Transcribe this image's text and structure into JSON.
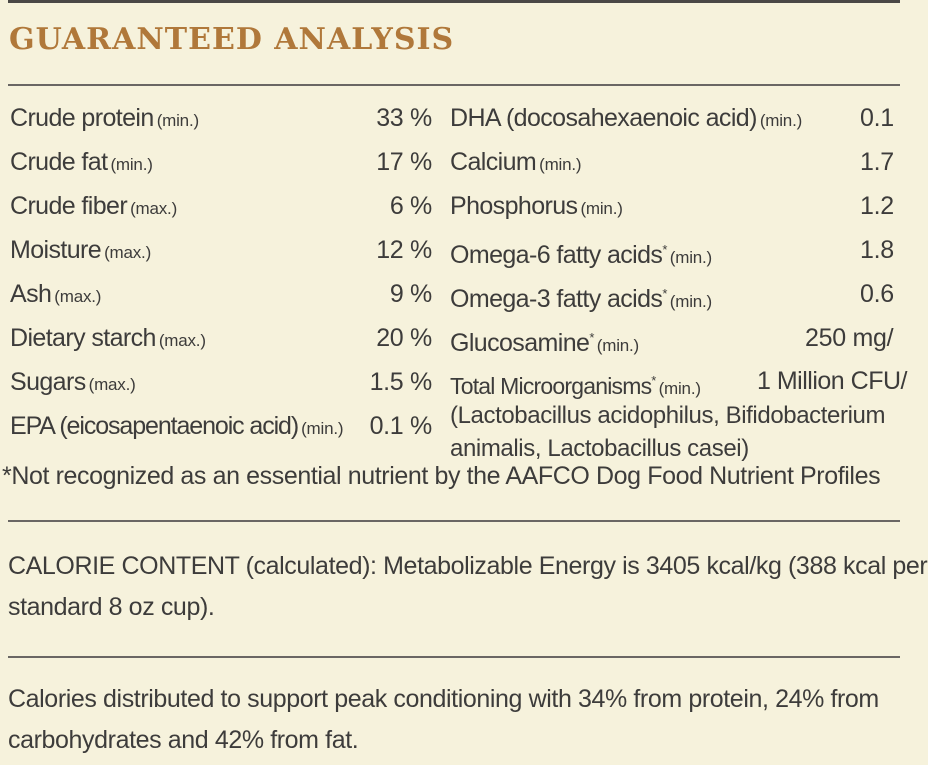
{
  "title": "GUARANTEED ANALYSIS",
  "left_items": [
    {
      "name": "Crude protein",
      "qualifier": "(min.)",
      "value": "33 %"
    },
    {
      "name": "Crude fat",
      "qualifier": "(min.)",
      "value": "17 %"
    },
    {
      "name": "Crude fiber",
      "qualifier": "(max.)",
      "value": "6 %"
    },
    {
      "name": "Moisture",
      "qualifier": "(max.)",
      "value": "12 %"
    },
    {
      "name": "Ash",
      "qualifier": "(max.)",
      "value": "9 %"
    },
    {
      "name": "Dietary starch",
      "qualifier": "(max.)",
      "value": "20 %"
    },
    {
      "name": "Sugars",
      "qualifier": "(max.)",
      "value": "1.5 %"
    },
    {
      "name": "EPA (eicosapentaenoic acid)",
      "qualifier": "(min.)",
      "value": "0.1 %"
    }
  ],
  "right_items": [
    {
      "name": "DHA (docosahexaenoic acid)",
      "qualifier": "(min.)",
      "value": "0.1"
    },
    {
      "name": "Calcium",
      "qualifier": "(min.)",
      "value": "1.7"
    },
    {
      "name": "Phosphorus",
      "qualifier": "(min.)",
      "value": "1.2"
    },
    {
      "name": "Omega-6 fatty acids",
      "mark": "*",
      "qualifier": "(min.)",
      "value": "1.8"
    },
    {
      "name": "Omega-3 fatty acids",
      "mark": "*",
      "qualifier": "(min.)",
      "value": "0.6"
    },
    {
      "name": "Glucosamine",
      "mark": "*",
      "qualifier": "(min.)",
      "value": "250 mg/"
    }
  ],
  "microorganisms": {
    "name": "Total Microorganisms",
    "mark": "*",
    "qualifier": "(min.)",
    "value": "1 Million CFU/",
    "detail": "(Lactobacillus acidophilus, Bifidobacterium animalis, Lactobacillus casei)"
  },
  "footnote": "*Not recognized as an essential nutrient by the AAFCO Dog Food Nutrient Profiles",
  "calorie_content": "CALORIE CONTENT (calculated): Metabolizable Energy is 3405 kcal/kg (388 kcal per standard 8 oz cup).",
  "calorie_distribution": "Calories distributed to support peak conditioning with 34% from protein, 24% from carbohydrates and 42% from fat."
}
